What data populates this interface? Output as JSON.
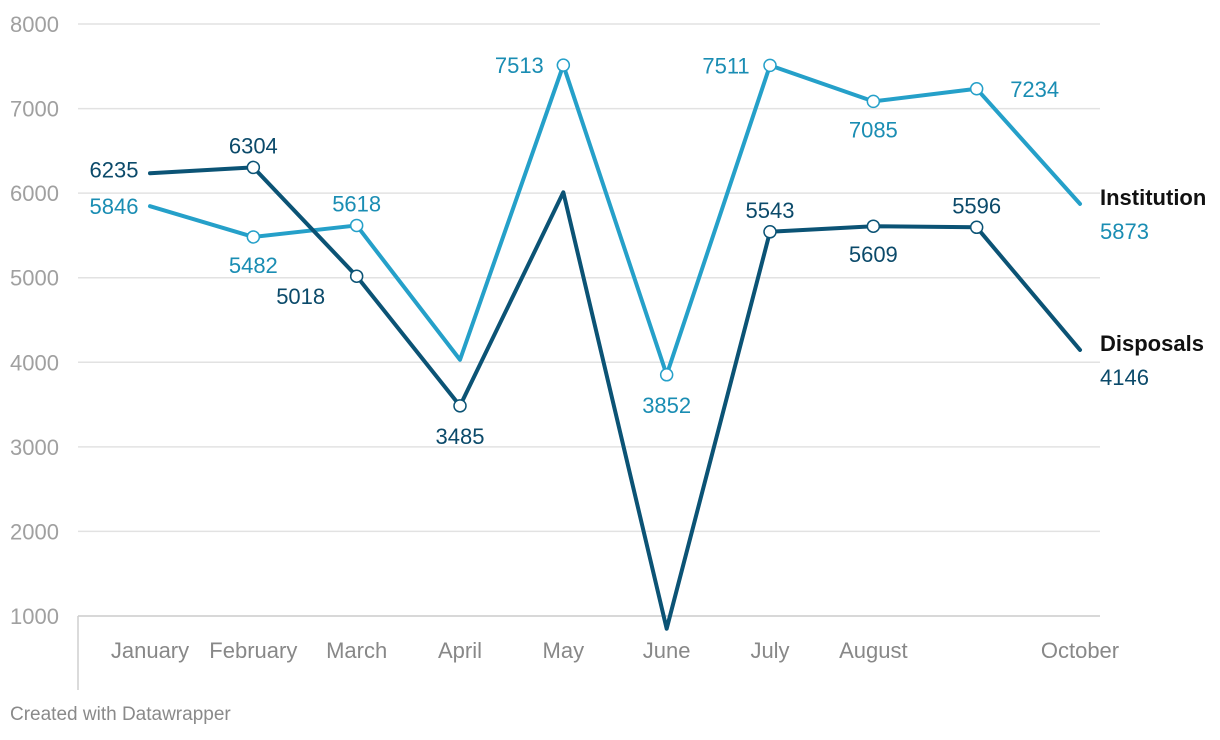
{
  "chart_data": {
    "type": "line",
    "categories": [
      "January",
      "February",
      "March",
      "April",
      "May",
      "June",
      "July",
      "August",
      "",
      "October"
    ],
    "ylim": [
      1000,
      8000
    ],
    "yticks": [
      "1000",
      "2000",
      "3000",
      "4000",
      "5000",
      "6000",
      "7000",
      "8000"
    ],
    "grid": true,
    "legend": "right",
    "series": [
      {
        "name": "Institution",
        "color": "#25a0c9",
        "label_color": "#1a8db3",
        "values": [
          5846,
          5482,
          5618,
          4030,
          7513,
          3852,
          7511,
          7085,
          7234,
          5873
        ],
        "labels": [
          "5846",
          "5482",
          "5618",
          "",
          "7513",
          "3852",
          "7511",
          "7085",
          "7234",
          "5873"
        ],
        "markers": [
          false,
          true,
          true,
          false,
          true,
          true,
          true,
          true,
          true,
          false
        ]
      },
      {
        "name": "Disposals",
        "color": "#0b5375",
        "label_color": "#0b4a6a",
        "values": [
          6235,
          6304,
          5018,
          3485,
          6010,
          850,
          5543,
          5609,
          5596,
          4146
        ],
        "labels": [
          "6235",
          "6304",
          "5018",
          "3485",
          "",
          "",
          "5543",
          "5609",
          "5596",
          "4146"
        ],
        "markers": [
          false,
          true,
          true,
          true,
          false,
          false,
          true,
          true,
          true,
          false
        ]
      }
    ]
  },
  "footer": "Created with Datawrapper"
}
